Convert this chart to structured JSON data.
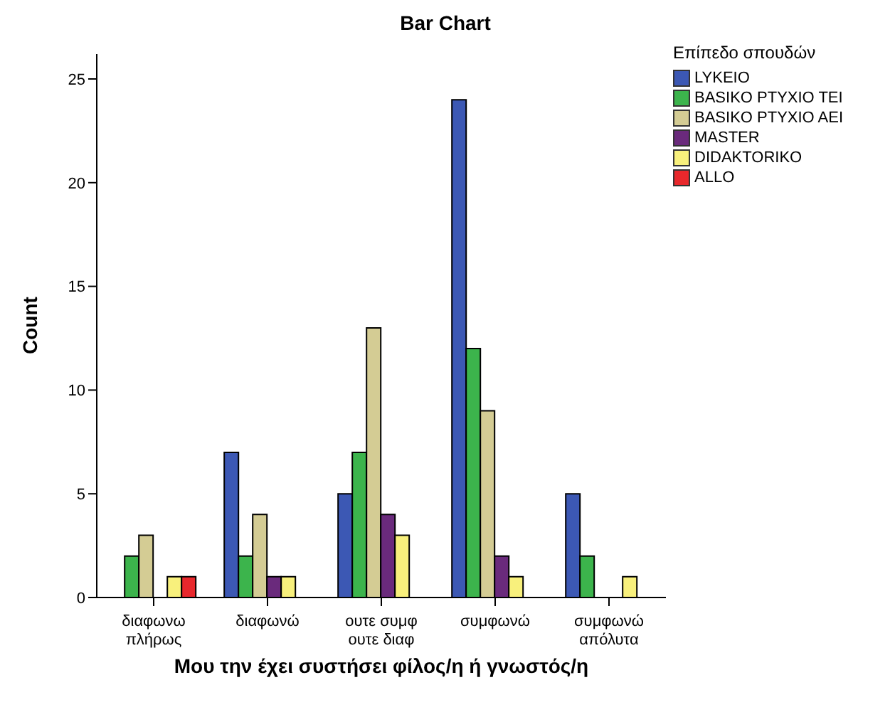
{
  "chart_data": {
    "type": "bar",
    "title": "Bar Chart",
    "xlabel": "Μου την έχει συστήσει φίλος/η ή γνωστός/η",
    "ylabel": "Count",
    "legend_title": "Επίπεδο σπουδών",
    "categories": [
      "διαφωνω πλήρως",
      "διαφωνώ",
      "ουτε συμφ ουτε διαφ",
      "συμφωνώ",
      "συμφωνώ απόλυτα"
    ],
    "series": [
      {
        "name": "LYKEIO",
        "color": "#3c58b4",
        "values": [
          0,
          7,
          5,
          24,
          5
        ]
      },
      {
        "name": "BASIKO PTYXIO TEI",
        "color": "#3cb44c",
        "values": [
          2,
          2,
          7,
          12,
          2
        ]
      },
      {
        "name": "BASIKO PTYXIO AEI",
        "color": "#d4cc94",
        "values": [
          3,
          4,
          13,
          9,
          0
        ]
      },
      {
        "name": "MASTER",
        "color": "#6a2a7c",
        "values": [
          0,
          1,
          4,
          2,
          0
        ]
      },
      {
        "name": "DIDAKTORIKO",
        "color": "#f8f07c",
        "values": [
          1,
          1,
          3,
          1,
          1
        ]
      },
      {
        "name": "ALLO",
        "color": "#e8282c",
        "values": [
          1,
          0,
          0,
          0,
          0
        ]
      }
    ],
    "ylim": [
      0,
      26.2
    ],
    "yticks": [
      0,
      5,
      10,
      15,
      20,
      25
    ],
    "grid": false,
    "legend": "top right"
  }
}
